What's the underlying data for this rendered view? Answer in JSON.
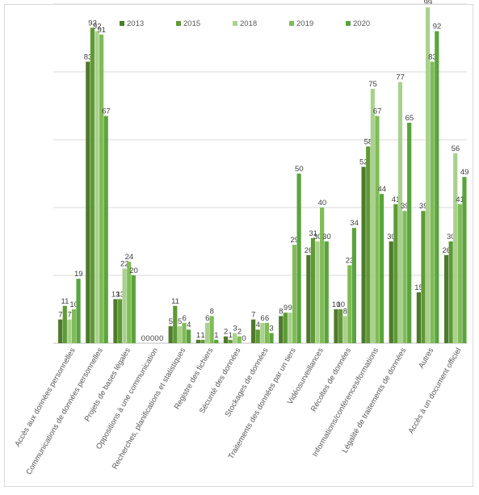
{
  "chart_data": {
    "type": "bar",
    "title": "",
    "xlabel": "",
    "ylabel": "",
    "ylim": [
      0,
      100
    ],
    "grid": true,
    "legend_position": "top",
    "categories": [
      "Accès aux données personnelles",
      "Communications de données personnelles",
      "Projets de bases légales",
      "Oppositions à une communication",
      "Recherches, planifications et statistiques",
      "Registre des fichiers",
      "Sécurité des données",
      "Stockages de données",
      "Traitements des données par un tiers",
      "Vidéosurveillances",
      "Récoltes de données",
      "Informations/conférences/formations",
      "Légalité de traitements de données",
      "Autres",
      "Accès à un document officiel"
    ],
    "series": [
      {
        "name": "2013",
        "color": "#4e7a2c",
        "values": [
          7,
          83,
          13,
          0,
          5,
          1,
          2,
          7,
          8,
          26,
          10,
          52,
          30,
          15,
          26
        ]
      },
      {
        "name": "2015",
        "color": "#5f9a35",
        "values": [
          11,
          93,
          13,
          0,
          11,
          1,
          1,
          4,
          9,
          31,
          10,
          58,
          41,
          39,
          30
        ]
      },
      {
        "name": "2018",
        "color": "#a9d18e",
        "values": [
          7,
          92,
          22,
          0,
          5,
          6,
          3,
          6,
          9,
          30,
          8,
          75,
          77,
          99,
          56
        ]
      },
      {
        "name": "2019",
        "color": "#7fbc56",
        "values": [
          10,
          91,
          24,
          0,
          6,
          8,
          2,
          6,
          29,
          40,
          23,
          67,
          39,
          83,
          41
        ]
      },
      {
        "name": "2020",
        "color": "#5aa43d",
        "values": [
          19,
          67,
          20,
          0,
          4,
          1,
          0,
          3,
          50,
          30,
          34,
          44,
          65,
          92,
          49
        ]
      }
    ]
  }
}
